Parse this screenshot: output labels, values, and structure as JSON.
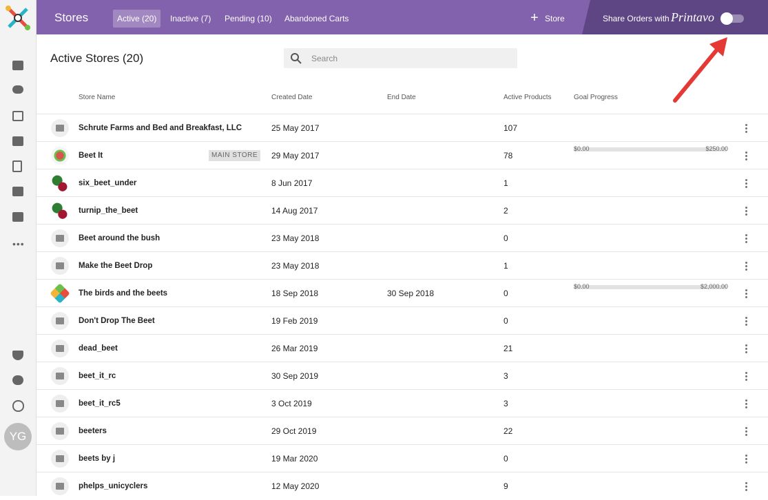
{
  "header": {
    "title": "Stores",
    "tabs": [
      "Active (20)",
      "Inactive (7)",
      "Pending (10)",
      "Abandoned Carts"
    ],
    "add_button": "Store",
    "share_label": "Share Orders with",
    "brand": "Printavo"
  },
  "page": {
    "title": "Active Stores (20)",
    "search_placeholder": "Search"
  },
  "table": {
    "columns": [
      "Store Name",
      "Created Date",
      "End Date",
      "Active Products",
      "Goal Progress"
    ],
    "rows": [
      {
        "name": "Schrute Farms and Bed and Breakfast, LLC",
        "created": "25 May 2017",
        "products": "107"
      },
      {
        "name": "Beet It",
        "badge": "MAIN STORE",
        "created": "29 May 2017",
        "products": "78",
        "goal_min": "$0.00",
        "goal_max": "$250.00"
      },
      {
        "name": "six_beet_under",
        "created": "8 Jun 2017",
        "products": "1"
      },
      {
        "name": "turnip_the_beet",
        "created": "14 Aug 2017",
        "products": "2"
      },
      {
        "name": "Beet around the bush",
        "created": "23 May 2018",
        "products": "0"
      },
      {
        "name": "Make the Beet Drop",
        "created": "23 May 2018",
        "products": "1"
      },
      {
        "name": "The birds and the beets",
        "created": "18 Sep 2018",
        "end": "30 Sep 2018",
        "products": "0",
        "goal_min": "$0.00",
        "goal_max": "$2,000.00"
      },
      {
        "name": "Don't Drop The Beet",
        "created": "19 Feb 2019",
        "products": "0"
      },
      {
        "name": "dead_beet",
        "created": "26 Mar 2019",
        "products": "21"
      },
      {
        "name": "beet_it_rc",
        "created": "30 Sep 2019",
        "products": "3"
      },
      {
        "name": "beet_it_rc5",
        "created": "3 Oct 2019",
        "products": "3"
      },
      {
        "name": "beeters",
        "created": "29 Oct 2019",
        "products": "22"
      },
      {
        "name": "beets by j",
        "created": "19 Mar 2020",
        "products": "0"
      },
      {
        "name": "phelps_unicyclers",
        "created": "12 May 2020",
        "products": "9"
      }
    ]
  },
  "user": {
    "initials": "YG"
  }
}
